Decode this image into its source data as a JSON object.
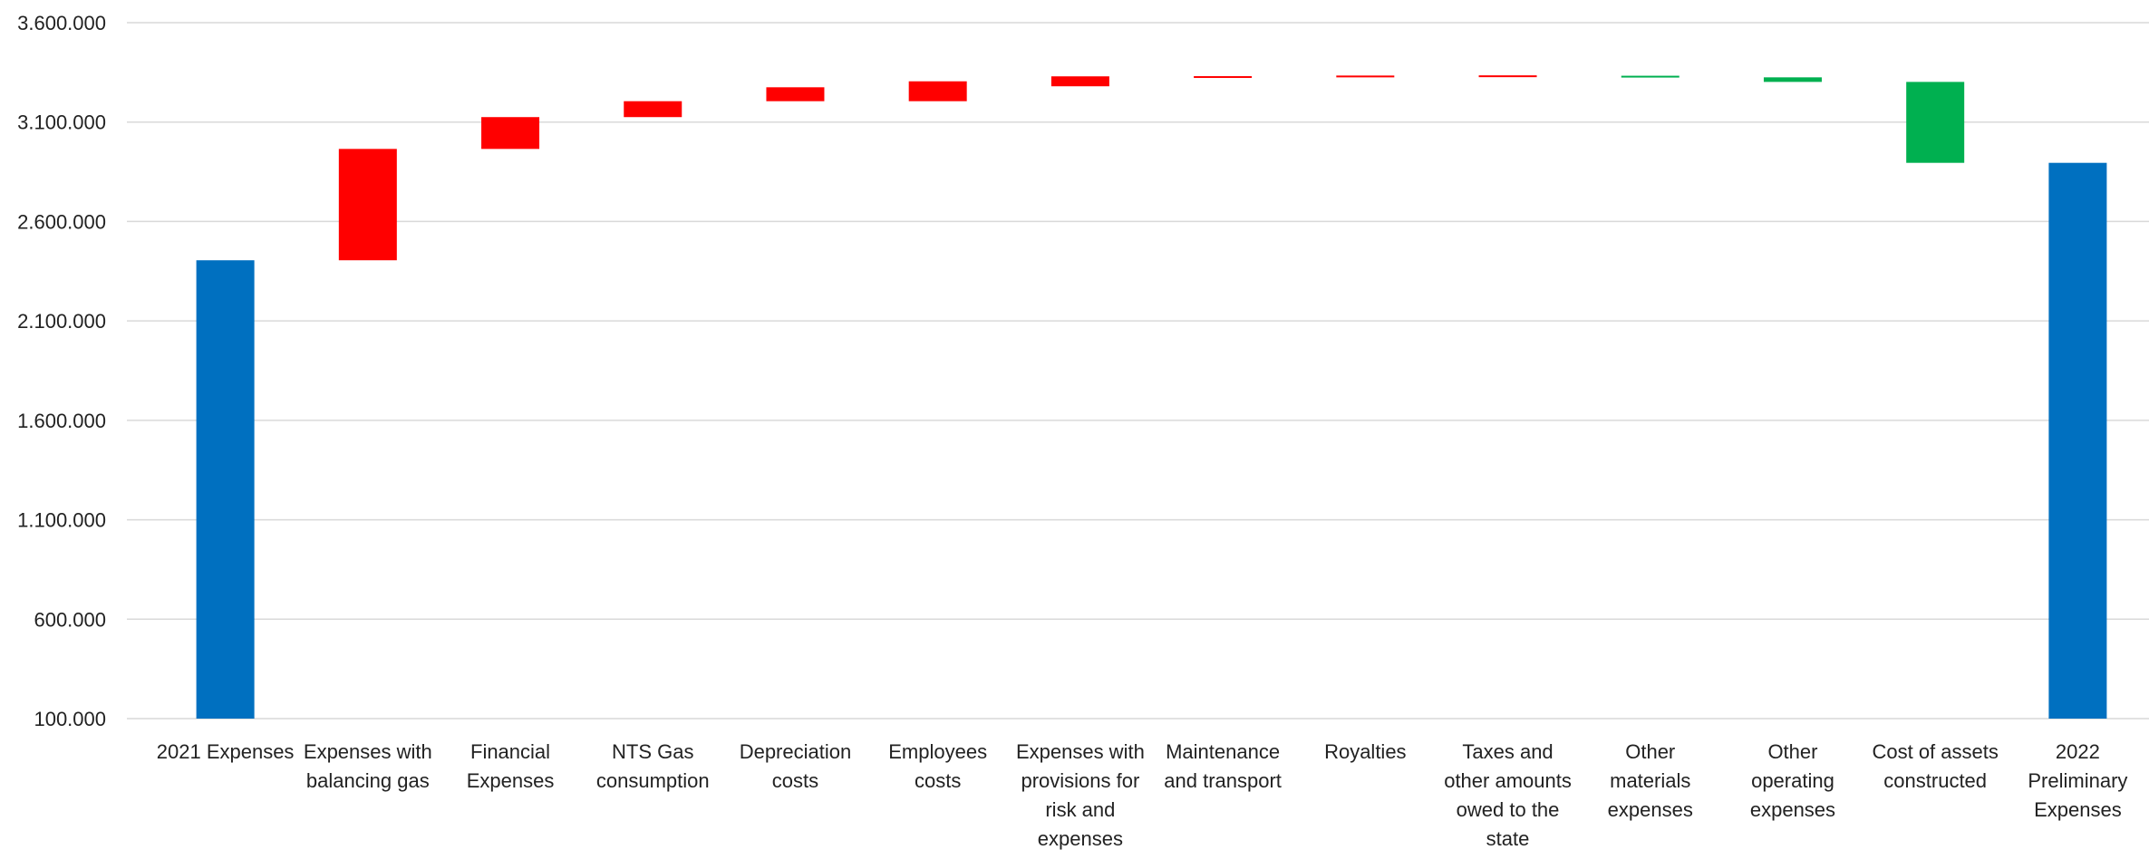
{
  "chart_data": {
    "type": "bar",
    "subtype": "waterfall",
    "title": "",
    "xlabel": "",
    "ylabel": "",
    "ylim": [
      100000,
      3600000
    ],
    "y_ticks": [
      100000,
      600000,
      1100000,
      1600000,
      2100000,
      2600000,
      3100000,
      3600000
    ],
    "y_tick_labels": [
      "100.000",
      "600.000",
      "1.100.000",
      "1.600.000",
      "2.100.000",
      "2.600.000",
      "3.100.000",
      "3.600.000"
    ],
    "grid": true,
    "legend": "none",
    "colors": {
      "total": "#0070C0",
      "increase": "#FF0000",
      "decrease": "#00B050"
    },
    "categories": [
      [
        "2021 Expenses"
      ],
      [
        "Expenses with",
        "balancing gas"
      ],
      [
        "Financial",
        "Expenses"
      ],
      [
        "NTS Gas",
        "consumption"
      ],
      [
        "Depreciation",
        "costs"
      ],
      [
        "Employees",
        "costs"
      ],
      [
        "Expenses with",
        "provisions for",
        "risk and",
        "expenses"
      ],
      [
        "Maintenance",
        "and transport"
      ],
      [
        "Royalties"
      ],
      [
        "Taxes and",
        "other amounts",
        "owed to the",
        "state"
      ],
      [
        "Other",
        "materials",
        "expenses"
      ],
      [
        "Other",
        "operating",
        "expenses"
      ],
      [
        "Cost of assets",
        "constructed"
      ],
      [
        "2022",
        "Preliminary",
        "Expenses"
      ]
    ],
    "bars": [
      {
        "kind": "total",
        "start": 100000,
        "end": 2405000
      },
      {
        "kind": "increase",
        "start": 2405000,
        "end": 2965000
      },
      {
        "kind": "increase",
        "start": 2965000,
        "end": 3125000
      },
      {
        "kind": "increase",
        "start": 3125000,
        "end": 3205000
      },
      {
        "kind": "increase",
        "start": 3205000,
        "end": 3275000
      },
      {
        "kind": "increase",
        "start": 3205000,
        "end": 3305000
      },
      {
        "kind": "increase",
        "start": 3280000,
        "end": 3330000
      },
      {
        "kind": "increase",
        "start": 3328000,
        "end": 3331000
      },
      {
        "kind": "increase",
        "start": 3328000,
        "end": 3334000
      },
      {
        "kind": "increase",
        "start": 3329000,
        "end": 3335000
      },
      {
        "kind": "decrease",
        "start": 3333000,
        "end": 3330000
      },
      {
        "kind": "decrease",
        "start": 3325000,
        "end": 3302000
      },
      {
        "kind": "decrease",
        "start": 3302000,
        "end": 2895000
      },
      {
        "kind": "total",
        "start": 100000,
        "end": 2895000
      }
    ]
  }
}
